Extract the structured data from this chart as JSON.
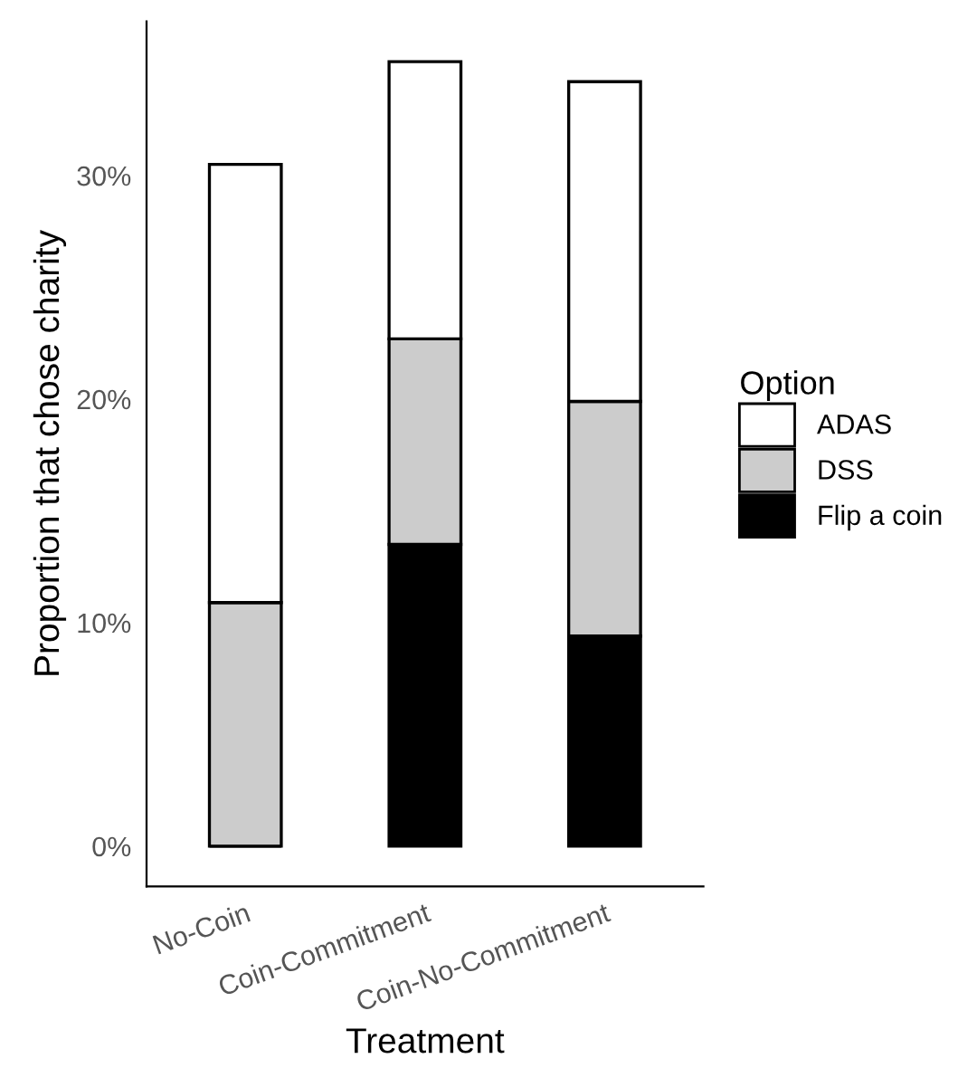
{
  "chart_data": {
    "type": "bar",
    "stacked": true,
    "xlabel": "Treatment",
    "ylabel": "Proportion that chose charity",
    "legend_title": "Option",
    "legend": "right",
    "grid": false,
    "categories": [
      "No-Coin",
      "Coin-Commitment",
      "Coin-No-Commitment"
    ],
    "series": [
      {
        "name": "Flip a coin",
        "color": "#000000",
        "values": [
          0,
          13.5,
          9.4
        ]
      },
      {
        "name": "DSS",
        "color": "#cccccc",
        "values": [
          10.9,
          9.2,
          10.5
        ]
      },
      {
        "name": "ADAS",
        "color": "#ffffff",
        "values": [
          19.6,
          12.4,
          14.3
        ]
      }
    ],
    "ylim": [
      -1.8,
      36.9
    ],
    "yticks": [
      {
        "value": 0,
        "label": "0%"
      },
      {
        "value": 10,
        "label": "10%"
      },
      {
        "value": 20,
        "label": "20%"
      },
      {
        "value": 30,
        "label": "30%"
      }
    ]
  }
}
